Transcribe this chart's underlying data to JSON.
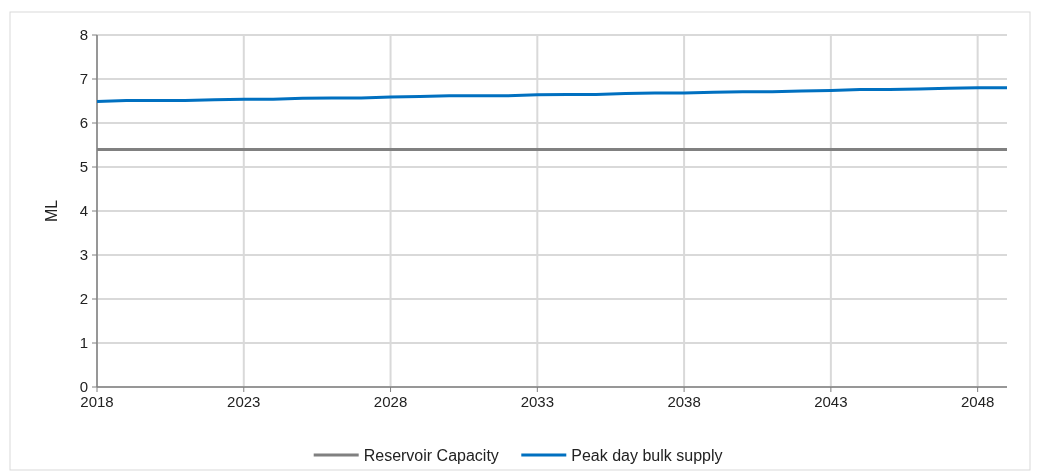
{
  "chart_data": {
    "type": "line",
    "ylabel": "ML",
    "xlim": [
      2018,
      2049
    ],
    "xticks": [
      2018,
      2023,
      2028,
      2033,
      2038,
      2043,
      2048
    ],
    "ylim": [
      0,
      8
    ],
    "yticks": [
      0,
      1,
      2,
      3,
      4,
      5,
      6,
      7,
      8
    ],
    "grid": true,
    "legend": "bottom",
    "line_style": "solid",
    "marker": "none",
    "series": [
      {
        "name": "Reservoir Capacity",
        "color": "#808080",
        "x": [
          2018,
          2049
        ],
        "values": [
          5.4,
          5.4
        ]
      },
      {
        "name": "Peak day bulk supply",
        "color": "#0070c0",
        "x": [
          2018,
          2019,
          2020,
          2021,
          2022,
          2023,
          2024,
          2025,
          2026,
          2027,
          2028,
          2029,
          2030,
          2031,
          2032,
          2033,
          2034,
          2035,
          2036,
          2037,
          2038,
          2039,
          2040,
          2041,
          2042,
          2043,
          2044,
          2045,
          2046,
          2047,
          2048,
          2049
        ],
        "values": [
          6.49,
          6.51,
          6.51,
          6.51,
          6.53,
          6.54,
          6.54,
          6.56,
          6.57,
          6.57,
          6.59,
          6.6,
          6.62,
          6.62,
          6.62,
          6.64,
          6.65,
          6.65,
          6.67,
          6.68,
          6.68,
          6.7,
          6.71,
          6.71,
          6.73,
          6.74,
          6.76,
          6.76,
          6.77,
          6.79,
          6.8,
          6.8
        ]
      }
    ]
  }
}
